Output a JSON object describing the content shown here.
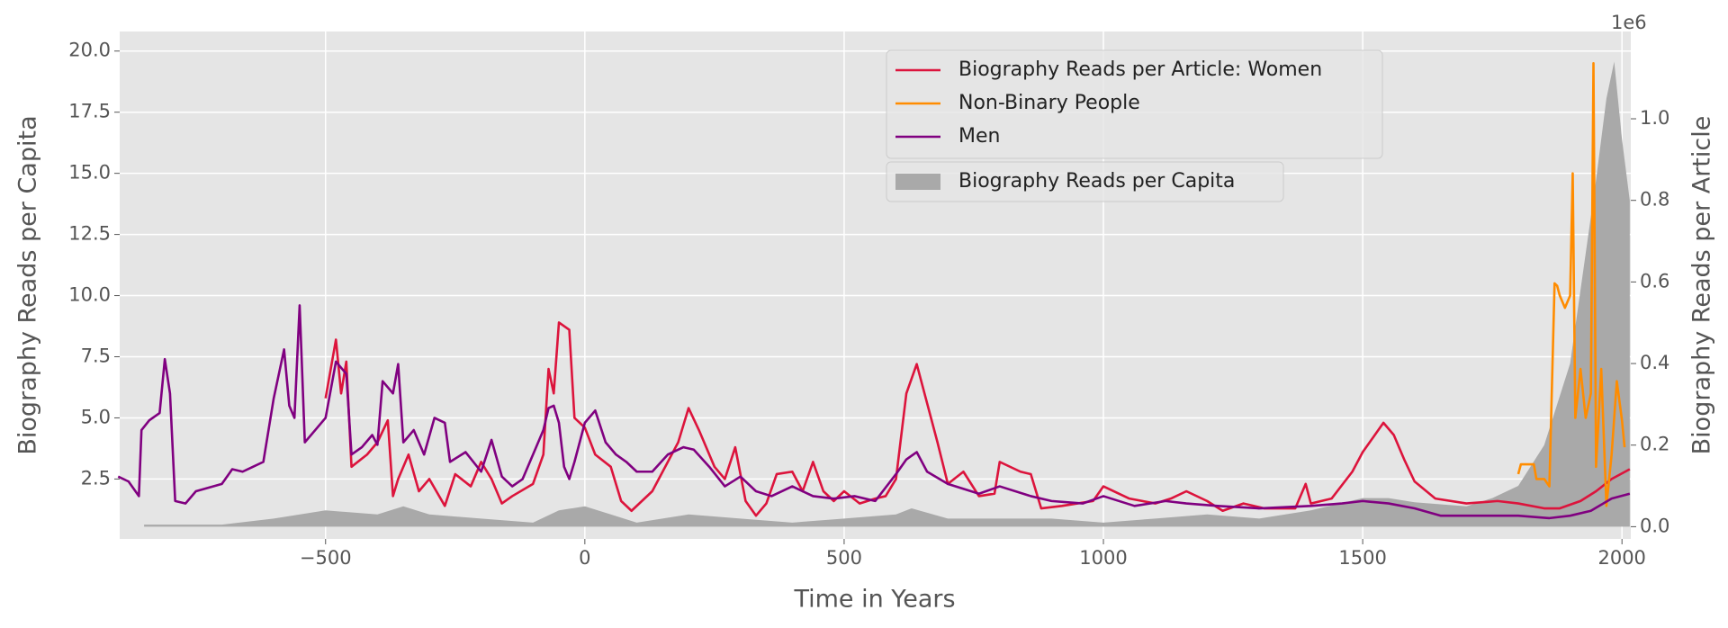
{
  "chart_data": {
    "type": "line",
    "xlabel": "Time in Years",
    "ylabel": "Biography Reads per Capita",
    "y2label": "Biography Reads per Article",
    "y2_offset_label": "1e6",
    "xlim": [
      -897,
      2017
    ],
    "ylim": [
      0.05,
      20.8
    ],
    "y2lim": [
      -30000,
      1214000
    ],
    "xticks": [
      {
        "value": -500,
        "label": "−500"
      },
      0,
      500,
      1000,
      1500,
      2000
    ],
    "yticks": [
      2.5,
      {
        "value": 5,
        "label": "5.0"
      },
      7.5,
      {
        "value": 10,
        "label": "10.0"
      },
      12.5,
      {
        "value": 15,
        "label": "15.0"
      },
      17.5,
      {
        "value": 20,
        "label": "20.0"
      }
    ],
    "y2ticks": [
      {
        "value": 0,
        "label": "0.0"
      },
      {
        "value": 200000,
        "label": "0.2"
      },
      {
        "value": 400000,
        "label": "0.4"
      },
      {
        "value": 600000,
        "label": "0.6"
      },
      {
        "value": 800000,
        "label": "0.8"
      },
      {
        "value": 1000000,
        "label": "1.0"
      }
    ],
    "grid": true,
    "legend": "upper center",
    "series": [
      {
        "name": "Biography Reads per Article: Women",
        "color": "#dc143c",
        "x": [
          -500,
          -480,
          -470,
          -460,
          -450,
          -420,
          -400,
          -380,
          -370,
          -360,
          -340,
          -320,
          -300,
          -270,
          -250,
          -220,
          -200,
          -180,
          -160,
          -140,
          -100,
          -80,
          -70,
          -60,
          -50,
          -30,
          -20,
          0,
          20,
          50,
          70,
          90,
          110,
          130,
          150,
          180,
          200,
          220,
          250,
          270,
          290,
          310,
          330,
          350,
          370,
          400,
          420,
          440,
          460,
          480,
          500,
          530,
          560,
          580,
          600,
          620,
          640,
          660,
          680,
          700,
          730,
          760,
          790,
          800,
          840,
          860,
          880,
          920,
          950,
          980,
          1000,
          1050,
          1100,
          1130,
          1160,
          1200,
          1230,
          1270,
          1310,
          1350,
          1370,
          1390,
          1400,
          1440,
          1480,
          1500,
          1520,
          1540,
          1560,
          1580,
          1600,
          1640,
          1700,
          1760,
          1800,
          1850,
          1880,
          1920,
          1950,
          1980,
          2015
        ],
        "values": [
          5.8,
          8.2,
          6,
          7.3,
          3,
          3.5,
          4,
          4.9,
          1.8,
          2.5,
          3.5,
          2,
          2.5,
          1.4,
          2.7,
          2.2,
          3.2,
          2.5,
          1.5,
          1.8,
          2.3,
          3.5,
          7,
          6,
          8.9,
          8.6,
          5,
          4.6,
          3.5,
          3,
          1.6,
          1.2,
          1.6,
          2,
          2.8,
          4,
          5.4,
          4.5,
          3,
          2.5,
          3.8,
          1.6,
          1,
          1.5,
          2.7,
          2.8,
          2,
          3.2,
          2,
          1.6,
          2,
          1.5,
          1.7,
          1.8,
          2.5,
          6,
          7.2,
          5.6,
          4,
          2.3,
          2.8,
          1.8,
          1.9,
          3.2,
          2.8,
          2.7,
          1.3,
          1.4,
          1.5,
          1.6,
          2.2,
          1.7,
          1.5,
          1.7,
          2,
          1.6,
          1.2,
          1.5,
          1.3,
          1.3,
          1.3,
          2.3,
          1.5,
          1.7,
          2.8,
          3.6,
          4.2,
          4.8,
          4.3,
          3.3,
          2.4,
          1.7,
          1.5,
          1.6,
          1.5,
          1.3,
          1.3,
          1.6,
          2,
          2.5,
          2.9
        ]
      },
      {
        "name": "Non-Binary People",
        "color": "#ff8c00",
        "x": [
          1800,
          1805,
          1830,
          1835,
          1850,
          1860,
          1870,
          1875,
          1880,
          1890,
          1900,
          1905,
          1910,
          1920,
          1930,
          1940,
          1945,
          1950,
          1960,
          1970,
          1980,
          1990,
          2000,
          2005
        ],
        "values": [
          2.7,
          3.1,
          3.1,
          2.5,
          2.5,
          2.2,
          10.5,
          10.4,
          10,
          9.5,
          10,
          15,
          5,
          7,
          5,
          6,
          19.5,
          3,
          7,
          1.4,
          3.5,
          6.5,
          4.9,
          3.8
        ]
      },
      {
        "name": "Men",
        "color": "#800080",
        "x": [
          -900,
          -880,
          -860,
          -855,
          -840,
          -820,
          -810,
          -800,
          -790,
          -770,
          -750,
          -700,
          -680,
          -660,
          -640,
          -620,
          -600,
          -580,
          -570,
          -560,
          -550,
          -540,
          -520,
          -500,
          -480,
          -460,
          -450,
          -430,
          -410,
          -400,
          -390,
          -370,
          -360,
          -350,
          -330,
          -310,
          -290,
          -270,
          -260,
          -230,
          -200,
          -180,
          -160,
          -140,
          -120,
          -100,
          -80,
          -70,
          -60,
          -50,
          -40,
          -30,
          -20,
          0,
          20,
          40,
          60,
          80,
          100,
          130,
          160,
          190,
          210,
          240,
          270,
          300,
          330,
          360,
          400,
          440,
          480,
          520,
          560,
          600,
          620,
          640,
          660,
          700,
          760,
          800,
          860,
          900,
          960,
          1000,
          1060,
          1120,
          1160,
          1220,
          1300,
          1400,
          1460,
          1500,
          1550,
          1600,
          1650,
          1700,
          1760,
          1800,
          1860,
          1900,
          1940,
          1980,
          2015
        ],
        "values": [
          2.6,
          2.4,
          1.8,
          4.5,
          4.9,
          5.2,
          7.4,
          6,
          1.6,
          1.5,
          2,
          2.3,
          2.9,
          2.8,
          3,
          3.2,
          5.8,
          7.8,
          5.5,
          5,
          9.6,
          4,
          4.5,
          5,
          7.3,
          6.8,
          3.5,
          3.8,
          4.3,
          3.9,
          6.5,
          6,
          7.2,
          4,
          4.5,
          3.5,
          5,
          4.8,
          3.2,
          3.6,
          2.8,
          4.1,
          2.6,
          2.2,
          2.5,
          3.5,
          4.5,
          5.4,
          5.5,
          4.8,
          3,
          2.5,
          3.2,
          4.8,
          5.3,
          4,
          3.5,
          3.2,
          2.8,
          2.8,
          3.5,
          3.8,
          3.7,
          3,
          2.2,
          2.6,
          2,
          1.8,
          2.2,
          1.8,
          1.7,
          1.8,
          1.6,
          2.7,
          3.3,
          3.6,
          2.8,
          2.3,
          1.9,
          2.2,
          1.8,
          1.6,
          1.5,
          1.8,
          1.4,
          1.6,
          1.5,
          1.4,
          1.3,
          1.4,
          1.5,
          1.6,
          1.5,
          1.3,
          1,
          1,
          1,
          1,
          0.9,
          1,
          1.2,
          1.7,
          1.9
        ]
      },
      {
        "name": "Biography Reads per Capita",
        "color": "#a9a9a9",
        "axis": "y2",
        "fill": true,
        "x": [
          -850,
          -700,
          -600,
          -500,
          -400,
          -350,
          -300,
          -200,
          -100,
          -50,
          0,
          50,
          100,
          200,
          300,
          400,
          500,
          600,
          630,
          700,
          800,
          900,
          1000,
          1100,
          1200,
          1300,
          1400,
          1500,
          1550,
          1600,
          1700,
          1750,
          1800,
          1850,
          1900,
          1950,
          1970,
          1985,
          2000,
          2015
        ],
        "values": [
          5000,
          5000,
          20000,
          40000,
          30000,
          50000,
          30000,
          20000,
          10000,
          40000,
          50000,
          30000,
          10000,
          30000,
          20000,
          10000,
          20000,
          30000,
          45000,
          20000,
          20000,
          20000,
          10000,
          20000,
          30000,
          20000,
          40000,
          70000,
          70000,
          60000,
          50000,
          70000,
          100000,
          200000,
          400000,
          850000,
          1050000,
          1140000,
          950000,
          800000
        ]
      }
    ]
  }
}
